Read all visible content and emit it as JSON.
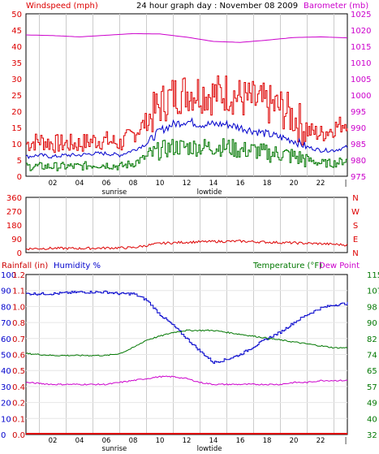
{
  "page": {
    "title": "24 hour graph day : November 08 2009"
  },
  "colors": {
    "wind": "#dd0000",
    "gust": "#dd0000",
    "wind_avg": "#0000cc",
    "wind_green": "#007700",
    "baro": "#cc00cc",
    "grid": "#cccccc",
    "frame": "#000000",
    "rain_label": "#cc0000",
    "humidity_label": "#0000cc",
    "temp_label": "#007700",
    "dew_label": "#cc00cc"
  },
  "chart_data": [
    {
      "type": "line",
      "id": "wind-baro",
      "left_label": "Windspeed (mph)",
      "right_label": "Barometer (mb)",
      "y_left_ticks": [
        "0",
        "5",
        "10",
        "15",
        "20",
        "25",
        "30",
        "35",
        "40",
        "45",
        "50"
      ],
      "y_right_ticks": [
        "975",
        "980",
        "985",
        "990",
        "995",
        "1000",
        "1005",
        "1010",
        "1015",
        "1020",
        "1025"
      ],
      "ylim_left": [
        0,
        50
      ],
      "ylim_right": [
        975,
        1025
      ],
      "x_ticks": [
        "02",
        "04",
        "06",
        "08",
        "10",
        "12",
        "14",
        "16",
        "18",
        "20",
        "22"
      ],
      "x_events": [
        {
          "label": "sunrise",
          "hour": 6.6
        },
        {
          "label": "lowtide",
          "hour": 13.7
        }
      ],
      "series": [
        {
          "key": "gust",
          "axis": "left",
          "hours": [
            0,
            1,
            2,
            3,
            4,
            5,
            6,
            7,
            8,
            9,
            10,
            11,
            12,
            13,
            14,
            15,
            16,
            17,
            18,
            19,
            20,
            21,
            22,
            23,
            24
          ],
          "values": [
            10,
            11,
            10,
            10,
            10,
            11,
            11,
            10,
            13,
            17,
            22,
            25,
            26,
            26,
            25,
            26,
            24,
            23,
            22,
            21,
            18,
            14,
            13,
            15,
            17
          ]
        },
        {
          "key": "wind_avg",
          "axis": "left",
          "hours": [
            0,
            1,
            2,
            3,
            4,
            5,
            6,
            7,
            8,
            9,
            10,
            11,
            12,
            13,
            14,
            15,
            16,
            17,
            18,
            19,
            20,
            21,
            22,
            23,
            24
          ],
          "values": [
            6,
            6.5,
            6,
            6.5,
            6.5,
            7,
            7,
            6.5,
            8,
            10,
            14,
            16,
            17,
            16,
            16,
            16,
            15,
            14,
            13,
            12,
            11,
            9,
            8,
            8,
            9
          ]
        },
        {
          "key": "wind_green",
          "axis": "left",
          "hours": [
            0,
            1,
            2,
            3,
            4,
            5,
            6,
            7,
            8,
            9,
            10,
            11,
            12,
            13,
            14,
            15,
            16,
            17,
            18,
            19,
            20,
            21,
            22,
            23,
            24
          ],
          "values": [
            3,
            3,
            3,
            3,
            3,
            3.5,
            3.5,
            3,
            4,
            6,
            8,
            9,
            9,
            9,
            9,
            9,
            8,
            8,
            7,
            7,
            6,
            5,
            4,
            4,
            5
          ]
        },
        {
          "key": "baro",
          "axis": "right",
          "hours": [
            0,
            2,
            4,
            6,
            8,
            10,
            12,
            14,
            16,
            18,
            20,
            22,
            24
          ],
          "values": [
            1018.5,
            1018.3,
            1017.9,
            1018.4,
            1018.9,
            1018.8,
            1017.8,
            1016.5,
            1016.2,
            1016.9,
            1017.7,
            1017.9,
            1017.6
          ]
        }
      ]
    },
    {
      "type": "line",
      "id": "wind-direction",
      "y_left_ticks": [
        "0",
        "90",
        "180",
        "270",
        "360"
      ],
      "right_compass": [
        "N",
        "E",
        "S",
        "W",
        "N"
      ],
      "ylim": [
        0,
        360
      ],
      "series": [
        {
          "key": "wind",
          "hours": [
            0,
            2,
            4,
            6,
            8,
            10,
            12,
            14,
            16,
            18,
            20,
            22,
            24
          ],
          "values": [
            25,
            28,
            27,
            30,
            32,
            60,
            68,
            72,
            74,
            68,
            63,
            58,
            50
          ]
        }
      ]
    },
    {
      "type": "line",
      "id": "rain-humidity-temp",
      "labels": {
        "rain": "Rainfall (in)",
        "humidity": "Humidity %",
        "temp": "Temperature (°F)",
        "dew": "Dew Point"
      },
      "y_hum_ticks": [
        "0",
        "10",
        "20",
        "30",
        "40",
        "50",
        "60",
        "70",
        "80",
        "90",
        "100"
      ],
      "y_rain_ticks": [
        "0.0",
        "0.1",
        "0.2",
        "0.4",
        "0.5",
        "0.6",
        "0.7",
        "0.8",
        "1.0",
        "1.1",
        "1.2"
      ],
      "y_temp_ticks": [
        "32",
        "40",
        "49",
        "57",
        "65",
        "74",
        "82",
        "90",
        "98",
        "107",
        "115"
      ],
      "ylim_hum": [
        0,
        100
      ],
      "ylim_temp": [
        32,
        115
      ],
      "x_ticks": [
        "02",
        "04",
        "06",
        "08",
        "10",
        "12",
        "14",
        "16",
        "18",
        "20",
        "22"
      ],
      "x_events": [
        {
          "label": "sunrise",
          "hour": 6.6
        },
        {
          "label": "lowtide",
          "hour": 13.7
        }
      ],
      "series": [
        {
          "key": "humidity",
          "axis": "hum",
          "hours": [
            0,
            2,
            4,
            6,
            7,
            8,
            9,
            10,
            11,
            12,
            13,
            14,
            15,
            16,
            17,
            18,
            19,
            20,
            21,
            22,
            23,
            24
          ],
          "values": [
            88,
            88,
            89,
            89,
            88,
            88,
            84,
            75,
            68,
            60,
            52,
            45,
            47,
            50,
            55,
            60,
            64,
            70,
            75,
            79,
            81,
            82
          ]
        },
        {
          "key": "temp",
          "axis": "temp",
          "hours": [
            0,
            2,
            4,
            6,
            7,
            8,
            9,
            10,
            11,
            12,
            13,
            14,
            15,
            16,
            17,
            18,
            19,
            20,
            21,
            22,
            23,
            24
          ],
          "values": [
            74,
            73,
            73,
            73,
            74,
            77,
            81,
            83,
            85,
            86,
            86,
            86,
            85,
            84,
            83,
            82,
            81,
            80,
            79,
            78,
            77,
            77
          ]
        },
        {
          "key": "dew",
          "axis": "temp",
          "hours": [
            0,
            2,
            4,
            6,
            7,
            8,
            9,
            10,
            11,
            12,
            13,
            14,
            15,
            16,
            17,
            18,
            19,
            20,
            21,
            22,
            23,
            24
          ],
          "values": [
            59,
            58,
            58,
            58,
            59,
            60,
            61,
            62,
            62,
            61,
            59,
            58,
            58,
            58,
            58,
            58,
            58,
            59,
            59,
            60,
            60,
            60
          ]
        },
        {
          "key": "rain",
          "axis": "hum",
          "hours": [
            0,
            24
          ],
          "values": [
            0.4,
            0.4
          ]
        }
      ]
    }
  ]
}
